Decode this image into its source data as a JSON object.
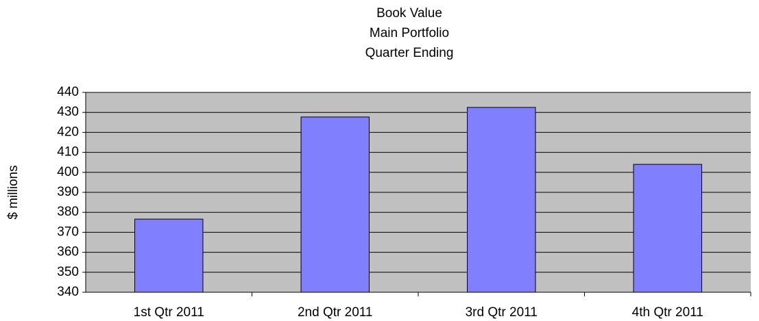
{
  "chart_data": {
    "type": "bar",
    "title": [
      "Book Value",
      "Main Portfolio",
      "Quarter Ending"
    ],
    "y_label": "$ millions",
    "categories": [
      "1st Qtr 2011",
      "2nd Qtr 2011",
      "3rd Qtr 2011",
      "4th Qtr 2011"
    ],
    "values": [
      376.6,
      427.7,
      432.5,
      404
    ],
    "color": "#8080ff",
    "ylim": [
      340,
      440
    ],
    "yticks": [
      340,
      350,
      360,
      370,
      380,
      390,
      400,
      410,
      420,
      430,
      440
    ],
    "grid": true,
    "background": "#c0c0c0"
  }
}
